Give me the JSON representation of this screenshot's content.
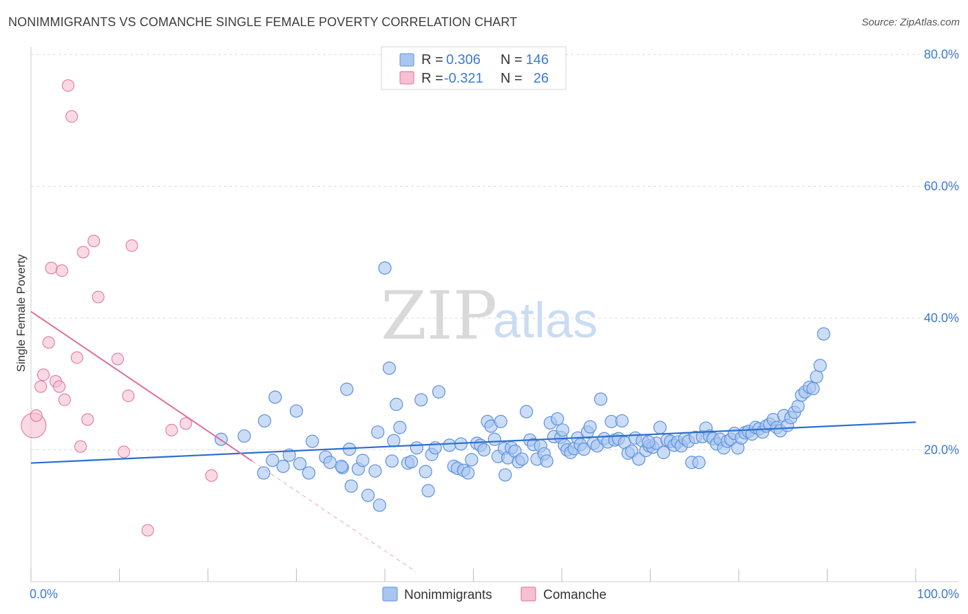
{
  "title": "NONIMMIGRANTS VS COMANCHE SINGLE FEMALE POVERTY CORRELATION CHART",
  "source": "Source: ZipAtlas.com",
  "colors": {
    "blue": "#5b8fe0",
    "blue_fill": "#a9c6f0",
    "pink": "#e06c98",
    "pink_fill": "#f5c0d2",
    "axis_blue": "#3d7ad4"
  },
  "chart_data": {
    "type": "scatter",
    "title": "NONIMMIGRANTS VS COMANCHE SINGLE FEMALE POVERTY CORRELATION CHART",
    "xlabel": "",
    "ylabel": "Single Female Poverty",
    "xlim": [
      0,
      100
    ],
    "ylim": [
      0,
      80
    ],
    "x_tick_labels": [
      "0.0%",
      "100.0%"
    ],
    "y_ticks": [
      20,
      40,
      60,
      80
    ],
    "y_tick_labels": [
      "20.0%",
      "40.0%",
      "60.0%",
      "80.0%"
    ],
    "legend": [
      {
        "name": "Nonimmigrants",
        "r_label": "R =",
        "r": "0.306",
        "n_label": "N =",
        "n": "146"
      },
      {
        "name": "Comanche",
        "r_label": "R =",
        "r": "-0.321",
        "n_label": "N =",
        "n": "26"
      }
    ],
    "series": [
      {
        "name": "Nonimmigrants",
        "trend": {
          "x": [
            0,
            100
          ],
          "y": [
            18.0,
            24.2
          ]
        },
        "points": [
          [
            21.5,
            21.6
          ],
          [
            24.1,
            22.1
          ],
          [
            26.3,
            16.5
          ],
          [
            27.3,
            18.4
          ],
          [
            27.6,
            28.0
          ],
          [
            26.4,
            24.4
          ],
          [
            28.5,
            17.5
          ],
          [
            30.0,
            25.9
          ],
          [
            29.2,
            19.2
          ],
          [
            30.4,
            17.9
          ],
          [
            31.4,
            16.5
          ],
          [
            31.8,
            21.3
          ],
          [
            33.3,
            18.9
          ],
          [
            33.8,
            18.1
          ],
          [
            35.2,
            17.3
          ],
          [
            35.1,
            17.5
          ],
          [
            35.7,
            29.2
          ],
          [
            36.0,
            20.1
          ],
          [
            36.2,
            14.5
          ],
          [
            37.0,
            17.1
          ],
          [
            37.5,
            18.4
          ],
          [
            38.1,
            13.1
          ],
          [
            38.9,
            16.8
          ],
          [
            39.4,
            11.6
          ],
          [
            39.2,
            22.7
          ],
          [
            40.0,
            47.6
          ],
          [
            40.5,
            32.4
          ],
          [
            41.0,
            21.4
          ],
          [
            41.3,
            26.9
          ],
          [
            41.7,
            23.4
          ],
          [
            42.6,
            18.0
          ],
          [
            43.0,
            18.2
          ],
          [
            43.6,
            20.3
          ],
          [
            44.1,
            27.6
          ],
          [
            44.6,
            16.7
          ],
          [
            44.9,
            13.8
          ],
          [
            45.3,
            19.3
          ],
          [
            45.7,
            20.3
          ],
          [
            46.1,
            28.8
          ],
          [
            47.3,
            20.7
          ],
          [
            47.8,
            17.5
          ],
          [
            48.2,
            17.2
          ],
          [
            48.6,
            20.9
          ],
          [
            48.9,
            16.9
          ],
          [
            49.4,
            16.5
          ],
          [
            49.8,
            18.5
          ],
          [
            50.4,
            21.0
          ],
          [
            50.8,
            20.7
          ],
          [
            51.2,
            20.0
          ],
          [
            51.6,
            24.3
          ],
          [
            52.0,
            23.6
          ],
          [
            52.4,
            21.6
          ],
          [
            52.8,
            19.0
          ],
          [
            53.1,
            24.3
          ],
          [
            53.5,
            20.2
          ],
          [
            53.9,
            18.8
          ],
          [
            54.3,
            20.3
          ],
          [
            54.7,
            19.8
          ],
          [
            55.1,
            18.2
          ],
          [
            55.5,
            18.6
          ],
          [
            56.0,
            25.8
          ],
          [
            56.4,
            21.5
          ],
          [
            56.8,
            20.8
          ],
          [
            57.2,
            18.6
          ],
          [
            57.6,
            20.6
          ],
          [
            58.0,
            19.4
          ],
          [
            58.3,
            18.3
          ],
          [
            58.7,
            24.1
          ],
          [
            59.1,
            22.0
          ],
          [
            59.5,
            24.7
          ],
          [
            59.9,
            21.9
          ],
          [
            60.3,
            20.7
          ],
          [
            60.6,
            20.0
          ],
          [
            61.0,
            19.6
          ],
          [
            61.4,
            20.2
          ],
          [
            61.8,
            21.8
          ],
          [
            62.1,
            20.8
          ],
          [
            62.5,
            20.1
          ],
          [
            62.9,
            22.7
          ],
          [
            63.2,
            23.5
          ],
          [
            63.6,
            21.0
          ],
          [
            64.0,
            20.6
          ],
          [
            64.4,
            27.7
          ],
          [
            64.8,
            21.7
          ],
          [
            65.2,
            21.2
          ],
          [
            65.6,
            24.3
          ],
          [
            66.0,
            21.5
          ],
          [
            66.4,
            21.7
          ],
          [
            66.8,
            24.4
          ],
          [
            67.1,
            21.1
          ],
          [
            67.5,
            19.5
          ],
          [
            67.9,
            19.8
          ],
          [
            68.3,
            21.8
          ],
          [
            68.7,
            18.6
          ],
          [
            69.1,
            21.4
          ],
          [
            69.5,
            19.9
          ],
          [
            69.9,
            20.6
          ],
          [
            70.3,
            20.4
          ],
          [
            70.7,
            21.0
          ],
          [
            71.1,
            23.4
          ],
          [
            71.5,
            19.6
          ],
          [
            71.9,
            21.5
          ],
          [
            72.3,
            21.3
          ],
          [
            72.7,
            20.7
          ],
          [
            73.1,
            21.2
          ],
          [
            73.5,
            20.6
          ],
          [
            73.9,
            21.7
          ],
          [
            74.3,
            21.3
          ],
          [
            74.7,
            18.1
          ],
          [
            75.1,
            21.9
          ],
          [
            75.5,
            18.1
          ],
          [
            75.9,
            22.0
          ],
          [
            76.3,
            23.3
          ],
          [
            76.7,
            22.1
          ],
          [
            77.1,
            21.7
          ],
          [
            77.5,
            20.9
          ],
          [
            77.9,
            21.6
          ],
          [
            78.3,
            20.3
          ],
          [
            78.7,
            21.3
          ],
          [
            79.1,
            21.6
          ],
          [
            79.5,
            22.5
          ],
          [
            79.9,
            20.3
          ],
          [
            80.3,
            21.8
          ],
          [
            80.7,
            22.6
          ],
          [
            81.1,
            22.8
          ],
          [
            81.5,
            22.4
          ],
          [
            81.9,
            23.4
          ],
          [
            82.3,
            23.2
          ],
          [
            82.7,
            22.7
          ],
          [
            83.1,
            23.6
          ],
          [
            83.5,
            23.9
          ],
          [
            83.9,
            24.6
          ],
          [
            84.3,
            23.4
          ],
          [
            84.7,
            22.9
          ],
          [
            85.1,
            25.2
          ],
          [
            85.5,
            23.7
          ],
          [
            85.9,
            24.9
          ],
          [
            86.3,
            25.7
          ],
          [
            86.7,
            26.6
          ],
          [
            87.1,
            28.3
          ],
          [
            87.5,
            28.8
          ],
          [
            88.0,
            29.5
          ],
          [
            88.4,
            29.3
          ],
          [
            88.8,
            31.1
          ],
          [
            89.2,
            32.8
          ],
          [
            89.6,
            37.6
          ],
          [
            40.8,
            18.3
          ],
          [
            53.6,
            16.2
          ],
          [
            60.1,
            23.0
          ],
          [
            69.8,
            21.2
          ]
        ]
      },
      {
        "name": "Comanche",
        "trend": {
          "x": [
            0,
            25
          ],
          "y": [
            41.0,
            18.3
          ]
        },
        "trend_dashed": {
          "x": [
            25,
            43.5
          ],
          "y": [
            18.3,
            1.5
          ]
        },
        "points": [
          [
            0.3,
            23.7
          ],
          [
            0.6,
            25.2
          ],
          [
            1.1,
            29.6
          ],
          [
            1.4,
            31.4
          ],
          [
            2.0,
            36.3
          ],
          [
            2.3,
            47.6
          ],
          [
            2.8,
            30.4
          ],
          [
            3.2,
            29.6
          ],
          [
            3.5,
            47.2
          ],
          [
            3.8,
            27.6
          ],
          [
            4.2,
            75.3
          ],
          [
            4.6,
            70.6
          ],
          [
            5.2,
            34.0
          ],
          [
            5.6,
            20.5
          ],
          [
            5.9,
            50.0
          ],
          [
            6.4,
            24.6
          ],
          [
            7.1,
            51.7
          ],
          [
            7.6,
            43.2
          ],
          [
            9.8,
            33.8
          ],
          [
            10.5,
            19.7
          ],
          [
            11.0,
            28.2
          ],
          [
            11.4,
            51.0
          ],
          [
            13.2,
            7.8
          ],
          [
            15.9,
            23.0
          ],
          [
            17.5,
            24.0
          ],
          [
            20.4,
            16.1
          ]
        ]
      }
    ]
  }
}
